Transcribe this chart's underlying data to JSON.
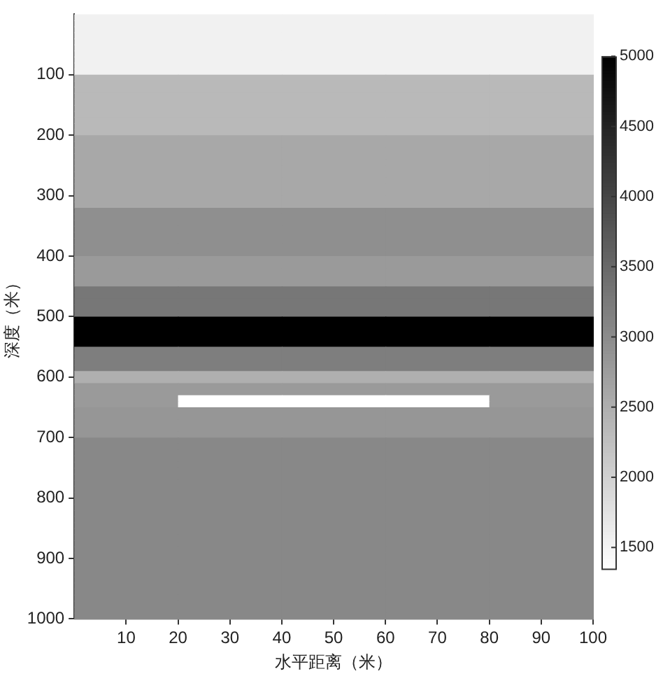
{
  "chart_data": {
    "type": "heatmap",
    "xlabel": "水平距离（米）",
    "ylabel": "深度（米）",
    "cells": [
      [
        1550,
        1550,
        1550,
        1550,
        1550
      ],
      [
        1550,
        1550,
        1550,
        1550,
        1550
      ],
      [
        1550,
        1550,
        1550,
        1550,
        1550
      ],
      [
        1550,
        1550,
        1550,
        1550,
        1550
      ],
      [
        1550,
        1550,
        1550,
        1550,
        1550
      ],
      [
        1550,
        1550,
        1550,
        1550,
        1550
      ],
      [
        1550,
        1550,
        1550,
        1550,
        1550
      ],
      [
        1550,
        1550,
        1550,
        1550,
        1550
      ],
      [
        1550,
        1550,
        1550,
        1550,
        1550
      ],
      [
        1550,
        1550,
        1550,
        1550,
        1550
      ],
      [
        2350,
        2350,
        2350,
        2350,
        2350
      ],
      [
        2350,
        2350,
        2350,
        2350,
        2350
      ],
      [
        2350,
        2350,
        2350,
        2350,
        2350
      ],
      [
        2350,
        2350,
        2350,
        2350,
        2350
      ],
      [
        2350,
        2350,
        2350,
        2350,
        2350
      ],
      [
        2350,
        2350,
        2350,
        2350,
        2350
      ],
      [
        2350,
        2350,
        2350,
        2350,
        2350
      ],
      [
        2350,
        2350,
        2350,
        2350,
        2350
      ],
      [
        2350,
        2350,
        2350,
        2350,
        2350
      ],
      [
        2350,
        2350,
        2350,
        2350,
        2350
      ],
      [
        2600,
        2600,
        2600,
        2600,
        2600
      ],
      [
        2600,
        2600,
        2600,
        2600,
        2600
      ],
      [
        2600,
        2600,
        2600,
        2600,
        2600
      ],
      [
        2600,
        2600,
        2600,
        2600,
        2600
      ],
      [
        2600,
        2600,
        2600,
        2600,
        2600
      ],
      [
        2600,
        2600,
        2600,
        2600,
        2600
      ],
      [
        2600,
        2600,
        2600,
        2600,
        2600
      ],
      [
        2600,
        2600,
        2600,
        2600,
        2600
      ],
      [
        2600,
        2600,
        2600,
        2600,
        2600
      ],
      [
        2600,
        2600,
        2600,
        2600,
        2600
      ],
      [
        2600,
        2600,
        2600,
        2600,
        2600
      ],
      [
        2600,
        2600,
        2600,
        2600,
        2600
      ],
      [
        2950,
        2950,
        2950,
        2950,
        2950
      ],
      [
        2950,
        2950,
        2950,
        2950,
        2950
      ],
      [
        2950,
        2950,
        2950,
        2950,
        2950
      ],
      [
        2950,
        2950,
        2950,
        2950,
        2950
      ],
      [
        2950,
        2950,
        2950,
        2950,
        2950
      ],
      [
        2950,
        2950,
        2950,
        2950,
        2950
      ],
      [
        2950,
        2950,
        2950,
        2950,
        2950
      ],
      [
        2950,
        2950,
        2950,
        2950,
        2950
      ],
      [
        2800,
        2800,
        2800,
        2800,
        2800
      ],
      [
        2800,
        2800,
        2800,
        2800,
        2800
      ],
      [
        2800,
        2800,
        2800,
        2800,
        2800
      ],
      [
        2800,
        2800,
        2800,
        2800,
        2800
      ],
      [
        2800,
        2800,
        2800,
        2800,
        2800
      ],
      [
        3300,
        3300,
        3300,
        3300,
        3300
      ],
      [
        3300,
        3300,
        3300,
        3300,
        3300
      ],
      [
        3300,
        3300,
        3300,
        3300,
        3300
      ],
      [
        3300,
        3300,
        3300,
        3300,
        3300
      ],
      [
        3300,
        3300,
        3300,
        3300,
        3300
      ],
      [
        5000,
        5000,
        5000,
        5000,
        5000
      ],
      [
        5000,
        5000,
        5000,
        5000,
        5000
      ],
      [
        5000,
        5000,
        5000,
        5000,
        5000
      ],
      [
        5000,
        5000,
        5000,
        5000,
        5000
      ],
      [
        5000,
        5000,
        5000,
        5000,
        5000
      ],
      [
        3200,
        3200,
        3200,
        3200,
        3200
      ],
      [
        3200,
        3200,
        3200,
        3200,
        3200
      ],
      [
        3200,
        3200,
        3200,
        3200,
        3200
      ],
      [
        3200,
        3200,
        3200,
        3200,
        3200
      ],
      [
        2500,
        2500,
        2500,
        2500,
        2500
      ],
      [
        2500,
        2500,
        2500,
        2500,
        2500
      ],
      [
        2800,
        2800,
        2800,
        2800,
        2800
      ],
      [
        2800,
        2800,
        2800,
        2800,
        2800
      ],
      [
        2800,
        1350,
        1350,
        1350,
        2800
      ],
      [
        2800,
        1350,
        1350,
        1350,
        2800
      ],
      [
        2850,
        2850,
        2850,
        2850,
        2850
      ],
      [
        2850,
        2850,
        2850,
        2850,
        2850
      ],
      [
        2850,
        2850,
        2850,
        2850,
        2850
      ],
      [
        2850,
        2850,
        2850,
        2850,
        2850
      ],
      [
        2850,
        2850,
        2850,
        2850,
        2850
      ],
      [
        3050,
        3050,
        3050,
        3050,
        3050
      ],
      [
        3050,
        3050,
        3050,
        3050,
        3050
      ],
      [
        3050,
        3050,
        3050,
        3050,
        3050
      ],
      [
        3050,
        3050,
        3050,
        3050,
        3050
      ],
      [
        3050,
        3050,
        3050,
        3050,
        3050
      ],
      [
        3050,
        3050,
        3050,
        3050,
        3050
      ],
      [
        3050,
        3050,
        3050,
        3050,
        3050
      ],
      [
        3050,
        3050,
        3050,
        3050,
        3050
      ],
      [
        3050,
        3050,
        3050,
        3050,
        3050
      ],
      [
        3050,
        3050,
        3050,
        3050,
        3050
      ],
      [
        3050,
        3050,
        3050,
        3050,
        3050
      ],
      [
        3050,
        3050,
        3050,
        3050,
        3050
      ],
      [
        3050,
        3050,
        3050,
        3050,
        3050
      ],
      [
        3050,
        3050,
        3050,
        3050,
        3050
      ],
      [
        3050,
        3050,
        3050,
        3050,
        3050
      ],
      [
        3050,
        3050,
        3050,
        3050,
        3050
      ],
      [
        3050,
        3050,
        3050,
        3050,
        3050
      ],
      [
        3050,
        3050,
        3050,
        3050,
        3050
      ],
      [
        3050,
        3050,
        3050,
        3050,
        3050
      ],
      [
        3050,
        3050,
        3050,
        3050,
        3050
      ],
      [
        3050,
        3050,
        3050,
        3050,
        3050
      ],
      [
        3050,
        3050,
        3050,
        3050,
        3050
      ],
      [
        3050,
        3050,
        3050,
        3050,
        3050
      ],
      [
        3050,
        3050,
        3050,
        3050,
        3050
      ],
      [
        3050,
        3050,
        3050,
        3050,
        3050
      ],
      [
        3050,
        3050,
        3050,
        3050,
        3050
      ],
      [
        3050,
        3050,
        3050,
        3050,
        3050
      ],
      [
        3050,
        3050,
        3050,
        3050,
        3050
      ],
      [
        3050,
        3050,
        3050,
        3050,
        3050
      ],
      [
        3050,
        3050,
        3050,
        3050,
        3050
      ]
    ],
    "xlim": [
      0,
      100
    ],
    "xticks": [
      10,
      20,
      30,
      40,
      50,
      60,
      70,
      80,
      90,
      100
    ],
    "ylim": [
      1000,
      0
    ],
    "yticks": [
      100,
      200,
      300,
      400,
      500,
      600,
      700,
      800,
      900,
      1000
    ],
    "clim": [
      1350,
      5000
    ],
    "cticks": [
      1500,
      2000,
      2500,
      3000,
      3500,
      4000,
      4500,
      5000
    ],
    "grid": false,
    "legend": false
  }
}
